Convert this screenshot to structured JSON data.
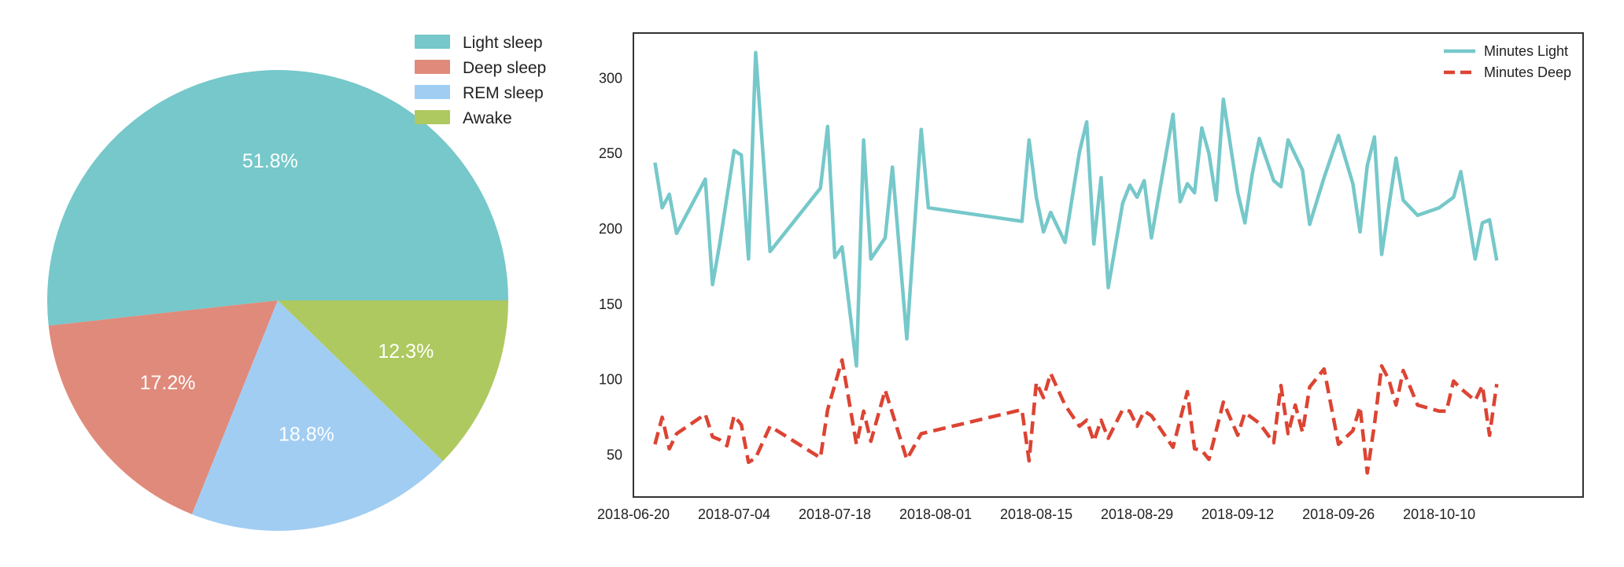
{
  "chart_data": [
    {
      "type": "pie",
      "labels": [
        "Light sleep",
        "Deep sleep",
        "REM sleep",
        "Awake"
      ],
      "values": [
        51.8,
        17.2,
        18.8,
        12.3
      ],
      "pct_labels": [
        "51.8%",
        "17.2%",
        "18.8%",
        "12.3%"
      ],
      "colors": [
        "#76c8ca",
        "#e08a7b",
        "#a1cdf3",
        "#aec960"
      ],
      "start_angle_deg": 0,
      "direction": "counterclockwise",
      "legend_position": "top-right"
    },
    {
      "type": "line",
      "x_tick_labels": [
        "2018-06-20",
        "2018-07-04",
        "2018-07-18",
        "2018-08-01",
        "2018-08-15",
        "2018-08-29",
        "2018-09-12",
        "2018-09-26",
        "2018-10-10"
      ],
      "y_tick_labels": [
        "50",
        "100",
        "150",
        "200",
        "250",
        "300"
      ],
      "x_range": [
        "2018-06-20",
        "2018-10-30"
      ],
      "y_range": [
        22,
        330
      ],
      "grid": false,
      "legend_position": "top-right",
      "series": [
        {
          "name": "Minutes Light",
          "color": "#76c8ca",
          "style": "solid",
          "points": [
            [
              "2018-06-23",
              244
            ],
            [
              "2018-06-24",
              214
            ],
            [
              "2018-06-25",
              223
            ],
            [
              "2018-06-26",
              197
            ],
            [
              "2018-06-30",
              233
            ],
            [
              "2018-07-01",
              163
            ],
            [
              "2018-07-02",
              190
            ],
            [
              "2018-07-04",
              252
            ],
            [
              "2018-07-05",
              249
            ],
            [
              "2018-07-06",
              180
            ],
            [
              "2018-07-07",
              317
            ],
            [
              "2018-07-09",
              185
            ],
            [
              "2018-07-16",
              227
            ],
            [
              "2018-07-17",
              268
            ],
            [
              "2018-07-18",
              181
            ],
            [
              "2018-07-19",
              188
            ],
            [
              "2018-07-21",
              109
            ],
            [
              "2018-07-22",
              259
            ],
            [
              "2018-07-23",
              180
            ],
            [
              "2018-07-25",
              194
            ],
            [
              "2018-07-26",
              241
            ],
            [
              "2018-07-28",
              127
            ],
            [
              "2018-07-30",
              266
            ],
            [
              "2018-07-31",
              214
            ],
            [
              "2018-08-13",
              205
            ],
            [
              "2018-08-14",
              259
            ],
            [
              "2018-08-15",
              221
            ],
            [
              "2018-08-16",
              198
            ],
            [
              "2018-08-17",
              211
            ],
            [
              "2018-08-19",
              191
            ],
            [
              "2018-08-21",
              251
            ],
            [
              "2018-08-22",
              271
            ],
            [
              "2018-08-23",
              190
            ],
            [
              "2018-08-24",
              234
            ],
            [
              "2018-08-25",
              161
            ],
            [
              "2018-08-27",
              217
            ],
            [
              "2018-08-28",
              229
            ],
            [
              "2018-08-29",
              221
            ],
            [
              "2018-08-30",
              232
            ],
            [
              "2018-08-31",
              194
            ],
            [
              "2018-09-03",
              276
            ],
            [
              "2018-09-04",
              218
            ],
            [
              "2018-09-05",
              230
            ],
            [
              "2018-09-06",
              224
            ],
            [
              "2018-09-07",
              267
            ],
            [
              "2018-09-08",
              250
            ],
            [
              "2018-09-09",
              219
            ],
            [
              "2018-09-10",
              286
            ],
            [
              "2018-09-12",
              224
            ],
            [
              "2018-09-13",
              204
            ],
            [
              "2018-09-14",
              236
            ],
            [
              "2018-09-15",
              260
            ],
            [
              "2018-09-17",
              232
            ],
            [
              "2018-09-18",
              228
            ],
            [
              "2018-09-19",
              259
            ],
            [
              "2018-09-21",
              239
            ],
            [
              "2018-09-22",
              203
            ],
            [
              "2018-09-24",
              234
            ],
            [
              "2018-09-26",
              262
            ],
            [
              "2018-09-28",
              230
            ],
            [
              "2018-09-29",
              198
            ],
            [
              "2018-09-30",
              242
            ],
            [
              "2018-10-01",
              261
            ],
            [
              "2018-10-02",
              183
            ],
            [
              "2018-10-04",
              247
            ],
            [
              "2018-10-05",
              219
            ],
            [
              "2018-10-07",
              209
            ],
            [
              "2018-10-10",
              214
            ],
            [
              "2018-10-12",
              221
            ],
            [
              "2018-10-13",
              238
            ],
            [
              "2018-10-15",
              180
            ],
            [
              "2018-10-16",
              204
            ],
            [
              "2018-10-17",
              206
            ],
            [
              "2018-10-18",
              179
            ]
          ]
        },
        {
          "name": "Minutes Deep",
          "color": "#dc4433",
          "style": "dashed",
          "points": [
            [
              "2018-06-23",
              57
            ],
            [
              "2018-06-24",
              75
            ],
            [
              "2018-06-25",
              54
            ],
            [
              "2018-06-26",
              64
            ],
            [
              "2018-06-30",
              77
            ],
            [
              "2018-07-01",
              62
            ],
            [
              "2018-07-02",
              60
            ],
            [
              "2018-07-03",
              56
            ],
            [
              "2018-07-04",
              76
            ],
            [
              "2018-07-05",
              70
            ],
            [
              "2018-07-06",
              45
            ],
            [
              "2018-07-07",
              48
            ],
            [
              "2018-07-09",
              69
            ],
            [
              "2018-07-16",
              48
            ],
            [
              "2018-07-17",
              80
            ],
            [
              "2018-07-19",
              113
            ],
            [
              "2018-07-20",
              85
            ],
            [
              "2018-07-21",
              57
            ],
            [
              "2018-07-22",
              79
            ],
            [
              "2018-07-23",
              59
            ],
            [
              "2018-07-25",
              93
            ],
            [
              "2018-07-28",
              47
            ],
            [
              "2018-07-30",
              64
            ],
            [
              "2018-08-13",
              80
            ],
            [
              "2018-08-14",
              46
            ],
            [
              "2018-08-15",
              98
            ],
            [
              "2018-08-16",
              88
            ],
            [
              "2018-08-17",
              104
            ],
            [
              "2018-08-19",
              83
            ],
            [
              "2018-08-21",
              69
            ],
            [
              "2018-08-22",
              73
            ],
            [
              "2018-08-23",
              59
            ],
            [
              "2018-08-24",
              73
            ],
            [
              "2018-08-25",
              61
            ],
            [
              "2018-08-27",
              80
            ],
            [
              "2018-08-28",
              79
            ],
            [
              "2018-08-29",
              69
            ],
            [
              "2018-08-30",
              79
            ],
            [
              "2018-08-31",
              76
            ],
            [
              "2018-09-03",
              55
            ],
            [
              "2018-09-05",
              92
            ],
            [
              "2018-09-06",
              54
            ],
            [
              "2018-09-07",
              53
            ],
            [
              "2018-09-08",
              47
            ],
            [
              "2018-09-09",
              66
            ],
            [
              "2018-09-10",
              85
            ],
            [
              "2018-09-12",
              63
            ],
            [
              "2018-09-13",
              78
            ],
            [
              "2018-09-15",
              71
            ],
            [
              "2018-09-17",
              58
            ],
            [
              "2018-09-18",
              96
            ],
            [
              "2018-09-19",
              64
            ],
            [
              "2018-09-20",
              83
            ],
            [
              "2018-09-21",
              65
            ],
            [
              "2018-09-22",
              95
            ],
            [
              "2018-09-24",
              107
            ],
            [
              "2018-09-26",
              57
            ],
            [
              "2018-09-28",
              66
            ],
            [
              "2018-09-29",
              82
            ],
            [
              "2018-09-30",
              38
            ],
            [
              "2018-10-01",
              70
            ],
            [
              "2018-10-02",
              109
            ],
            [
              "2018-10-03",
              100
            ],
            [
              "2018-10-04",
              83
            ],
            [
              "2018-10-05",
              106
            ],
            [
              "2018-10-07",
              83
            ],
            [
              "2018-10-10",
              79
            ],
            [
              "2018-10-11",
              79
            ],
            [
              "2018-10-12",
              99
            ],
            [
              "2018-10-13",
              94
            ],
            [
              "2018-10-15",
              86
            ],
            [
              "2018-10-16",
              96
            ],
            [
              "2018-10-17",
              63
            ],
            [
              "2018-10-18",
              97
            ]
          ]
        }
      ]
    }
  ]
}
